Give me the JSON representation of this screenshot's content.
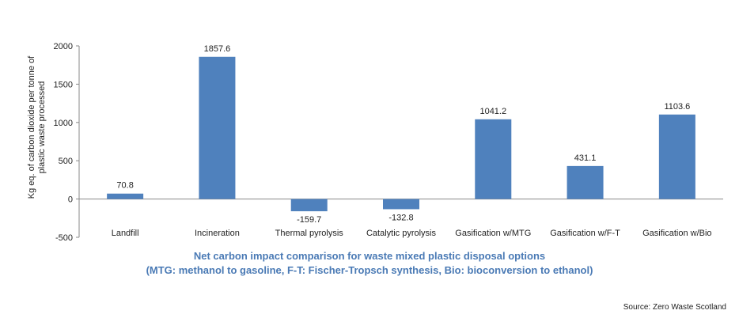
{
  "chart_data": {
    "type": "bar",
    "categories": [
      "Landfill",
      "Incineration",
      "Thermal pyrolysis",
      "Catalytic pyrolysis",
      "Gasification w/MTG",
      "Gasification w/F-T",
      "Gasification w/Bio"
    ],
    "values": [
      70.8,
      1857.6,
      -159.7,
      -132.8,
      1041.2,
      431.1,
      1103.6
    ],
    "value_labels": [
      "70.8",
      "1857.6",
      "-159.7",
      "-132.8",
      "1041.2",
      "431.1",
      "1103.6"
    ],
    "ylabel_lines": [
      "Kg eq. of carbon dioxide per tonne of",
      "plastic waste processed"
    ],
    "yticks": [
      "2000",
      "1500",
      "1000",
      "500",
      "0",
      "-500"
    ],
    "ylim": [
      -500,
      2000
    ],
    "grid": false,
    "bar_color": "#4f81bd"
  },
  "caption": {
    "line1": "Net carbon impact comparison for waste mixed plastic disposal options",
    "line2": "(MTG: methanol to gasoline, F-T: Fischer-Tropsch synthesis, Bio: bioconversion to ethanol)"
  },
  "source": "Source: Zero Waste Scotland"
}
